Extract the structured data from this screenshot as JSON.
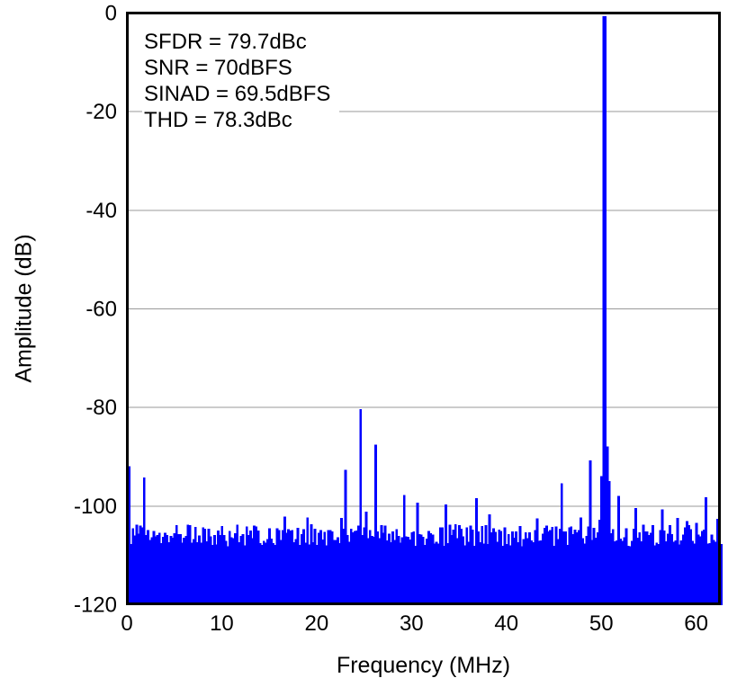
{
  "figure": {
    "background": "#ffffff",
    "text_color": "#000000"
  },
  "chart_data": {
    "type": "bar",
    "subtype": "fft-spectrum",
    "title": "",
    "xlabel": "Frequency (MHz)",
    "ylabel": "Amplitude (dB)",
    "xlim": [
      0,
      62.5
    ],
    "ylim": [
      -120,
      0
    ],
    "x_ticks": [
      0,
      10,
      20,
      30,
      40,
      50,
      60
    ],
    "y_ticks": [
      0,
      -20,
      -40,
      -60,
      -80,
      -100,
      -120
    ],
    "grid": {
      "horizontal": true,
      "vertical": false,
      "color": "#999999"
    },
    "legend": null,
    "bar_color": "#0000ff",
    "frame_color": "#000000",
    "bin_width_mhz": 0.2,
    "fundamental": {
      "freq_mhz": 50.3,
      "amplitude_db": -0.7
    },
    "peaks": [
      [
        0.3,
        -92.0
      ],
      [
        1.7,
        -94.3
      ],
      [
        16.5,
        -102.2
      ],
      [
        22.5,
        -102.5
      ],
      [
        23.0,
        -92.7
      ],
      [
        24.5,
        -80.4
      ],
      [
        25.1,
        -101.2
      ],
      [
        26.1,
        -87.6
      ],
      [
        29.1,
        -97.8
      ],
      [
        30.6,
        -99.4
      ],
      [
        33.6,
        -99.8
      ],
      [
        36.8,
        -98.5
      ],
      [
        38.2,
        -101.8
      ],
      [
        43.1,
        -102.6
      ],
      [
        45.8,
        -95.5
      ],
      [
        47.8,
        -102.4
      ],
      [
        48.9,
        -90.8
      ],
      [
        50.0,
        -94.0
      ],
      [
        50.2,
        -0.7
      ],
      [
        50.4,
        -0.7
      ],
      [
        50.6,
        -88.0
      ],
      [
        50.8,
        -95.0
      ],
      [
        51.8,
        -98.0
      ],
      [
        53.5,
        -100.5
      ],
      [
        56.4,
        -100.8
      ],
      [
        58.0,
        -102.5
      ],
      [
        61.0,
        -98.3
      ],
      [
        62.2,
        -102.7
      ]
    ],
    "noise_floor": {
      "typical_top_db": -106,
      "min_db": -108.3,
      "max_db": -102.0,
      "seed": 77
    },
    "annotations": [
      "SFDR = 79.7dBc",
      "SNR = 70dBFS",
      "SINAD = 69.5dBFS",
      "THD = 78.3dBc"
    ]
  }
}
